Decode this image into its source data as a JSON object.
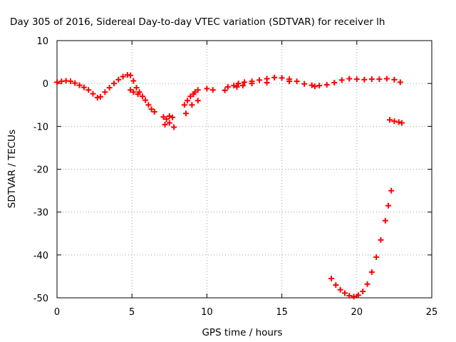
{
  "chart_data": {
    "type": "scatter",
    "title": "Day 305 of 2016, Sidereal Day-to-day VTEC variation (SDTVAR) for receiver lh",
    "xlabel": "GPS time / hours",
    "ylabel": "SDTVAR / TECUs",
    "xlim": [
      0,
      25
    ],
    "ylim": [
      -50,
      10
    ],
    "xticks": [
      0,
      5,
      10,
      15,
      20,
      25
    ],
    "yticks": [
      10,
      0,
      -10,
      -20,
      -30,
      -40,
      -50
    ],
    "grid": true,
    "marker": "+",
    "color": "#ff0000",
    "series": [
      {
        "name": "SDTVAR",
        "points": [
          [
            0.0,
            0.3
          ],
          [
            0.3,
            0.5
          ],
          [
            0.6,
            0.6
          ],
          [
            0.9,
            0.5
          ],
          [
            1.2,
            0.1
          ],
          [
            1.5,
            -0.4
          ],
          [
            1.8,
            -0.9
          ],
          [
            2.1,
            -1.5
          ],
          [
            2.4,
            -2.4
          ],
          [
            2.7,
            -3.3
          ],
          [
            2.9,
            -3.1
          ],
          [
            3.2,
            -2.0
          ],
          [
            3.5,
            -1.0
          ],
          [
            3.8,
            0.0
          ],
          [
            4.1,
            0.9
          ],
          [
            4.4,
            1.6
          ],
          [
            4.7,
            2.0
          ],
          [
            4.9,
            1.9
          ],
          [
            5.1,
            0.6
          ],
          [
            5.3,
            -1.0
          ],
          [
            5.5,
            -2.0
          ],
          [
            5.7,
            -3.0
          ],
          [
            5.9,
            -3.9
          ],
          [
            6.1,
            -5.0
          ],
          [
            6.3,
            -6.0
          ],
          [
            6.5,
            -6.6
          ],
          [
            4.9,
            -1.5
          ],
          [
            5.1,
            -2.0
          ],
          [
            5.4,
            -2.5
          ],
          [
            7.1,
            -7.8
          ],
          [
            7.3,
            -8.3
          ],
          [
            7.5,
            -7.6
          ],
          [
            7.7,
            -7.9
          ],
          [
            7.2,
            -9.6
          ],
          [
            7.5,
            -9.2
          ],
          [
            7.8,
            -10.2
          ],
          [
            8.5,
            -5.0
          ],
          [
            8.7,
            -4.0
          ],
          [
            8.9,
            -3.0
          ],
          [
            9.2,
            -2.0
          ],
          [
            9.4,
            -1.5
          ],
          [
            8.6,
            -7.0
          ],
          [
            9.0,
            -5.0
          ],
          [
            9.4,
            -4.0
          ],
          [
            9.1,
            -2.5
          ],
          [
            10.0,
            -1.2
          ],
          [
            10.4,
            -1.5
          ],
          [
            11.2,
            -1.6
          ],
          [
            11.4,
            -0.8
          ],
          [
            11.8,
            -0.5
          ],
          [
            12.1,
            0.0
          ],
          [
            12.5,
            0.3
          ],
          [
            13.0,
            0.5
          ],
          [
            13.5,
            0.8
          ],
          [
            14.0,
            1.1
          ],
          [
            14.5,
            1.4
          ],
          [
            15.0,
            1.3
          ],
          [
            15.5,
            1.0
          ],
          [
            16.0,
            0.5
          ],
          [
            16.5,
            -0.1
          ],
          [
            17.0,
            -0.4
          ],
          [
            17.5,
            -0.5
          ],
          [
            18.0,
            -0.3
          ],
          [
            18.5,
            0.2
          ],
          [
            19.0,
            0.8
          ],
          [
            19.5,
            1.1
          ],
          [
            20.0,
            1.0
          ],
          [
            20.5,
            0.9
          ],
          [
            21.0,
            1.0
          ],
          [
            21.5,
            1.0
          ],
          [
            22.0,
            1.1
          ],
          [
            22.5,
            0.9
          ],
          [
            22.9,
            0.3
          ],
          [
            12.0,
            -0.8
          ],
          [
            12.4,
            -0.5
          ],
          [
            13.0,
            0.0
          ],
          [
            14.0,
            0.2
          ],
          [
            15.5,
            0.5
          ],
          [
            17.2,
            -0.7
          ],
          [
            18.3,
            -45.5
          ],
          [
            18.6,
            -47.0
          ],
          [
            18.9,
            -48.1
          ],
          [
            19.2,
            -48.9
          ],
          [
            19.5,
            -49.5
          ],
          [
            19.8,
            -49.7
          ],
          [
            20.1,
            -49.4
          ],
          [
            20.4,
            -48.5
          ],
          [
            20.7,
            -46.8
          ],
          [
            21.0,
            -44.0
          ],
          [
            21.3,
            -40.5
          ],
          [
            21.6,
            -36.5
          ],
          [
            21.9,
            -32.0
          ],
          [
            22.1,
            -28.5
          ],
          [
            22.3,
            -25.0
          ],
          [
            22.2,
            -8.5
          ],
          [
            22.5,
            -8.8
          ],
          [
            22.8,
            -9.0
          ],
          [
            23.0,
            -9.2
          ]
        ]
      }
    ]
  }
}
